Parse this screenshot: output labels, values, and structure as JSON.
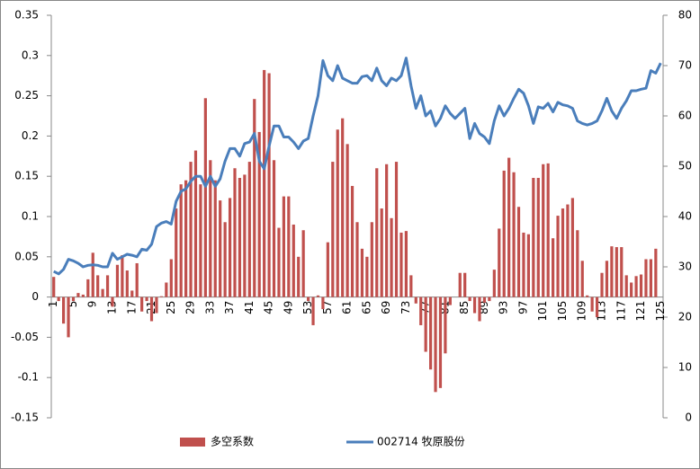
{
  "chart_data": {
    "type": "bar_line",
    "categories": [
      "1",
      null,
      null,
      null,
      "5",
      null,
      null,
      null,
      "9",
      null,
      null,
      null,
      "13",
      null,
      null,
      null,
      "17",
      null,
      null,
      null,
      "21",
      null,
      null,
      null,
      "25",
      null,
      null,
      null,
      "29",
      null,
      null,
      null,
      "33",
      null,
      null,
      null,
      "37",
      null,
      null,
      null,
      "41",
      null,
      null,
      null,
      "45",
      null,
      null,
      null,
      "49",
      null,
      null,
      null,
      "53",
      null,
      null,
      null,
      "57",
      null,
      null,
      null,
      "61",
      null,
      null,
      null,
      "65",
      null,
      null,
      null,
      "69",
      null,
      null,
      null,
      "73",
      null,
      null,
      null,
      "77",
      null,
      null,
      null,
      "81",
      null,
      null,
      null,
      "85",
      null,
      null,
      null,
      "89",
      null,
      null,
      null,
      "93",
      null,
      null,
      null,
      "97",
      null,
      null,
      null,
      "101",
      null,
      null,
      null,
      "105",
      null,
      null,
      null,
      "109",
      null,
      null,
      null,
      "113",
      null,
      null,
      null,
      "117",
      null,
      null,
      null,
      "121",
      null,
      null,
      null,
      "125"
    ],
    "series": [
      {
        "name": "多空系数",
        "type": "bar",
        "color": "#c0504d",
        "values": [
          0.025,
          -0.005,
          -0.033,
          -0.05,
          -0.005,
          0.005,
          0.003,
          0.022,
          0.055,
          0.027,
          0.01,
          0.027,
          -0.012,
          0.04,
          0.052,
          0.033,
          0.008,
          0.042,
          -0.018,
          -0.005,
          -0.03,
          -0.02,
          0.001,
          0.018,
          0.047,
          0.11,
          0.14,
          0.145,
          0.168,
          0.182,
          0.14,
          0.247,
          0.17,
          0.145,
          0.12,
          0.093,
          0.123,
          0.16,
          0.148,
          0.152,
          0.168,
          0.246,
          0.205,
          0.282,
          0.278,
          0.17,
          0.086,
          0.125,
          0.125,
          0.09,
          0.05,
          0.083,
          -0.005,
          -0.035,
          0.002,
          -0.015,
          0.068,
          0.168,
          0.208,
          0.222,
          0.19,
          0.138,
          0.093,
          0.06,
          0.05,
          0.093,
          0.16,
          0.11,
          0.165,
          0.098,
          0.168,
          0.08,
          0.082,
          0.027,
          -0.008,
          -0.035,
          -0.068,
          -0.09,
          -0.118,
          -0.113,
          -0.07,
          -0.01,
          0,
          0.03,
          0.03,
          -0.005,
          -0.02,
          -0.03,
          -0.007,
          -0.005,
          0.034,
          0.085,
          0.157,
          0.173,
          0.155,
          0.112,
          0.08,
          0.078,
          0.148,
          0.148,
          0.165,
          0.166,
          0.073,
          0.101,
          0.11,
          0.115,
          0.123,
          0.083,
          0.045,
          0.002,
          -0.018,
          -0.025,
          0.03,
          0.045,
          0.063,
          0.062,
          0.062,
          0.027,
          0.018,
          0.026,
          0.028,
          0.047,
          0.047,
          0.06,
          0
        ]
      },
      {
        "name": "002714 牧原股份",
        "type": "line",
        "axis": "y2",
        "color": "#4a7ebb",
        "values": [
          29.1,
          28.6,
          29.5,
          31.5,
          31.2,
          30.7,
          30,
          30.3,
          30.4,
          30.3,
          30,
          30,
          32.7,
          31.5,
          32,
          32.5,
          32.3,
          32,
          33.5,
          33.3,
          34.5,
          38,
          38.7,
          39,
          38.5,
          43,
          45,
          45.5,
          47,
          48,
          48,
          46,
          48,
          46,
          47.5,
          51,
          53.5,
          53.5,
          52,
          54.5,
          54.8,
          56.5,
          51,
          49.5,
          54,
          58,
          58,
          55.8,
          55.8,
          54.8,
          53.5,
          55,
          55.5,
          60,
          64,
          71,
          68,
          67,
          70,
          67.5,
          67,
          66.5,
          66.5,
          67.8,
          68,
          67,
          69.5,
          67,
          66,
          67.5,
          67,
          68,
          71.5,
          66,
          61.5,
          64,
          60,
          61,
          58,
          59.5,
          62,
          60.5,
          59.5,
          60.5,
          61.5,
          55.5,
          58.5,
          56.5,
          55.8,
          54.5,
          59,
          62,
          60,
          61.5,
          63.5,
          65.3,
          64.5,
          62,
          58.5,
          61.8,
          61.5,
          62.5,
          60.8,
          62.7,
          62.2,
          62,
          61.5,
          59,
          58.5,
          58.2,
          58.5,
          59,
          61,
          63.5,
          61,
          59.5,
          61.5,
          63,
          65,
          65,
          65.3,
          65.5,
          69,
          68.5,
          70.5
        ]
      }
    ],
    "ylim": [
      -0.15,
      0.35
    ],
    "yticks": [
      -0.15,
      -0.1,
      -0.05,
      0,
      0.05,
      0.1,
      0.15,
      0.2,
      0.25,
      0.3,
      0.35
    ],
    "y2lim": [
      0,
      80
    ],
    "y2ticks": [
      0,
      10,
      20,
      30,
      40,
      50,
      60,
      70,
      80
    ],
    "legend": "bottom"
  }
}
